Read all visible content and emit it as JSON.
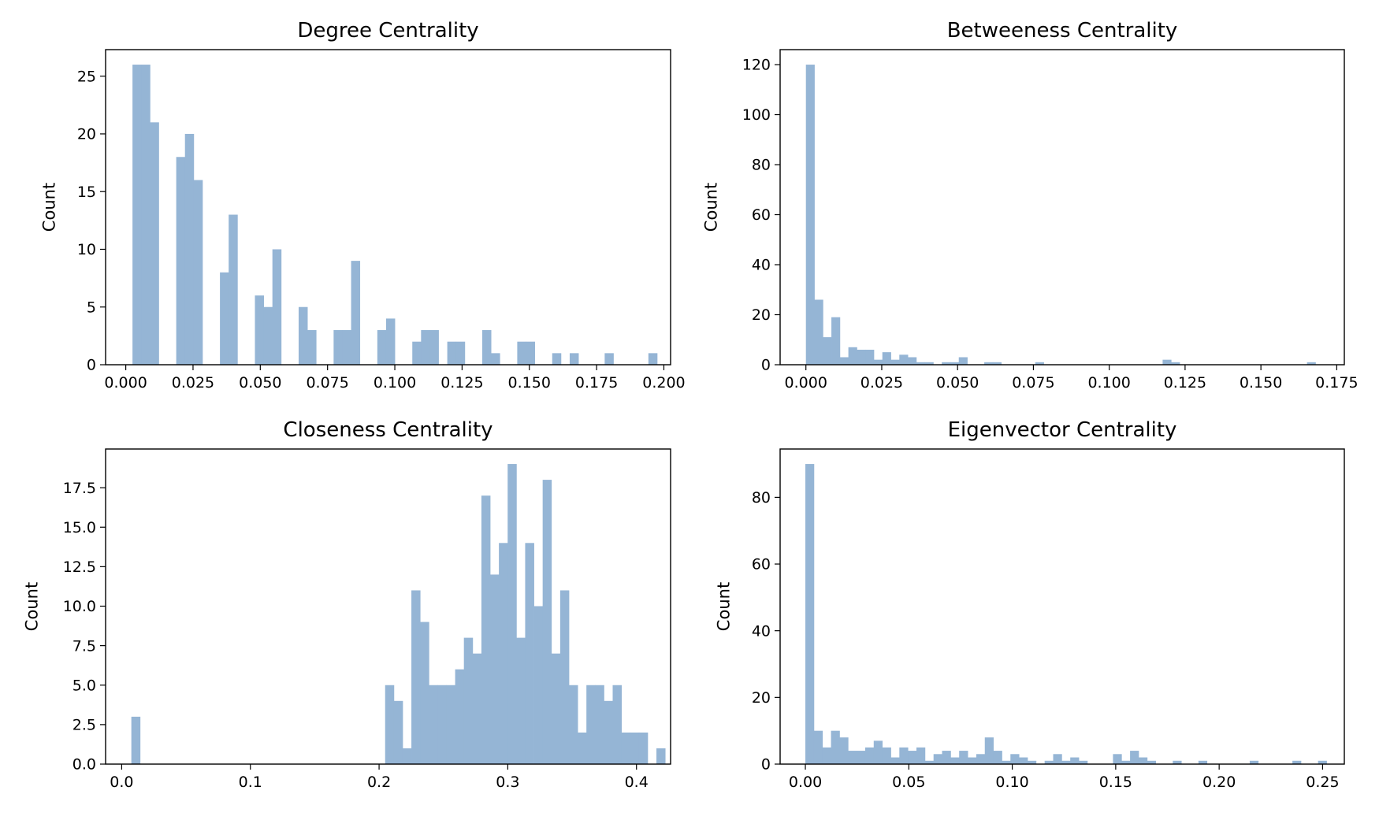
{
  "figure": {
    "bar_color": "#95b5d5",
    "background": "#ffffff"
  },
  "chart_data": [
    {
      "type": "bar",
      "title": "Degree Centrality",
      "xlabel": "",
      "ylabel": "Count",
      "xlim": [
        -0.0075,
        0.2025
      ],
      "ylim": [
        0,
        27.3
      ],
      "xticks": [
        "0.000",
        "0.025",
        "0.050",
        "0.075",
        "0.100",
        "0.125",
        "0.150",
        "0.175",
        "0.200"
      ],
      "xtick_values": [
        0,
        0.025,
        0.05,
        0.075,
        0.1,
        0.125,
        0.15,
        0.175,
        0.2
      ],
      "yticks": [
        "0",
        "5",
        "10",
        "15",
        "20",
        "25"
      ],
      "ytick_values": [
        0,
        5,
        10,
        15,
        20,
        25
      ],
      "bin_start": 0.0025,
      "bin_width": 0.00325,
      "values": [
        26,
        26,
        21,
        0,
        0,
        18,
        20,
        16,
        0,
        0,
        8,
        13,
        0,
        0,
        6,
        5,
        10,
        0,
        0,
        5,
        3,
        0,
        0,
        3,
        3,
        9,
        0,
        0,
        3,
        4,
        0,
        0,
        2,
        3,
        3,
        0,
        2,
        2,
        0,
        0,
        3,
        1,
        0,
        0,
        2,
        2,
        0,
        0,
        1,
        0,
        1,
        0,
        0,
        0,
        1,
        0,
        0,
        0,
        0,
        1
      ]
    },
    {
      "type": "bar",
      "title": "Betweeness Centrality",
      "xlabel": "",
      "ylabel": "Count",
      "xlim": [
        -0.0085,
        0.1775
      ],
      "ylim": [
        0,
        126
      ],
      "xticks": [
        "0.000",
        "0.025",
        "0.050",
        "0.075",
        "0.100",
        "0.125",
        "0.150",
        "0.175"
      ],
      "xtick_values": [
        0,
        0.025,
        0.05,
        0.075,
        0.1,
        0.125,
        0.15,
        0.175
      ],
      "yticks": [
        "0",
        "20",
        "40",
        "60",
        "80",
        "100",
        "120"
      ],
      "ytick_values": [
        0,
        20,
        40,
        60,
        80,
        100,
        120
      ],
      "bin_start": 0,
      "bin_width": 0.0028,
      "values": [
        120,
        26,
        11,
        19,
        3,
        7,
        6,
        6,
        2,
        5,
        2,
        4,
        3,
        1,
        1,
        0,
        1,
        1,
        3,
        0,
        0,
        1,
        1,
        0,
        0,
        0,
        0,
        1,
        0,
        0,
        0,
        0,
        0,
        0,
        0,
        0,
        0,
        0,
        0,
        0,
        0,
        0,
        2,
        1,
        0,
        0,
        0,
        0,
        0,
        0,
        0,
        0,
        0,
        0,
        0,
        0,
        0,
        0,
        0,
        1
      ]
    },
    {
      "type": "bar",
      "title": "Closeness Centrality",
      "xlabel": "",
      "ylabel": "Count",
      "xlim": [
        -0.0125,
        0.4265
      ],
      "ylim": [
        0,
        19.95
      ],
      "xticks": [
        "0.0",
        "0.1",
        "0.2",
        "0.3",
        "0.4"
      ],
      "xtick_values": [
        0,
        0.1,
        0.2,
        0.3,
        0.4
      ],
      "yticks": [
        "0.0",
        "2.5",
        "5.0",
        "7.5",
        "10.0",
        "12.5",
        "15.0",
        "17.5"
      ],
      "ytick_values": [
        0,
        2.5,
        5,
        7.5,
        10,
        12.5,
        15,
        17.5
      ],
      "bin_start": 0.0075,
      "bin_width": 0.0068,
      "values": [
        3,
        0,
        0,
        0,
        0,
        0,
        0,
        0,
        0,
        0,
        0,
        0,
        0,
        0,
        0,
        0,
        0,
        0,
        0,
        0,
        0,
        0,
        0,
        0,
        0,
        0,
        0,
        0,
        0,
        5,
        4,
        1,
        11,
        9,
        5,
        5,
        5,
        6,
        8,
        7,
        17,
        12,
        14,
        19,
        8,
        14,
        10,
        18,
        7,
        11,
        5,
        2,
        5,
        5,
        4,
        5,
        2,
        2,
        2,
        0,
        1
      ]
    },
    {
      "type": "bar",
      "title": "Eigenvector Centrality",
      "xlabel": "",
      "ylabel": "Count",
      "xlim": [
        -0.0122,
        0.2605
      ],
      "ylim": [
        0,
        94.5
      ],
      "xticks": [
        "0.00",
        "0.05",
        "0.10",
        "0.15",
        "0.20",
        "0.25"
      ],
      "xtick_values": [
        0,
        0.05,
        0.1,
        0.15,
        0.2,
        0.25
      ],
      "yticks": [
        "0",
        "20",
        "40",
        "60",
        "80"
      ],
      "ytick_values": [
        0,
        20,
        40,
        60,
        80
      ],
      "bin_start": 0,
      "bin_width": 0.00413,
      "values": [
        90,
        10,
        5,
        10,
        8,
        4,
        4,
        5,
        7,
        5,
        2,
        5,
        4,
        5,
        1,
        3,
        4,
        2,
        4,
        2,
        3,
        8,
        4,
        1,
        3,
        2,
        1,
        0,
        1,
        3,
        1,
        2,
        1,
        0,
        0,
        0,
        3,
        1,
        4,
        2,
        1,
        0,
        0,
        1,
        0,
        0,
        1,
        0,
        0,
        0,
        0,
        0,
        1,
        0,
        0,
        0,
        0,
        1,
        0,
        0,
        1,
        0
      ]
    }
  ]
}
